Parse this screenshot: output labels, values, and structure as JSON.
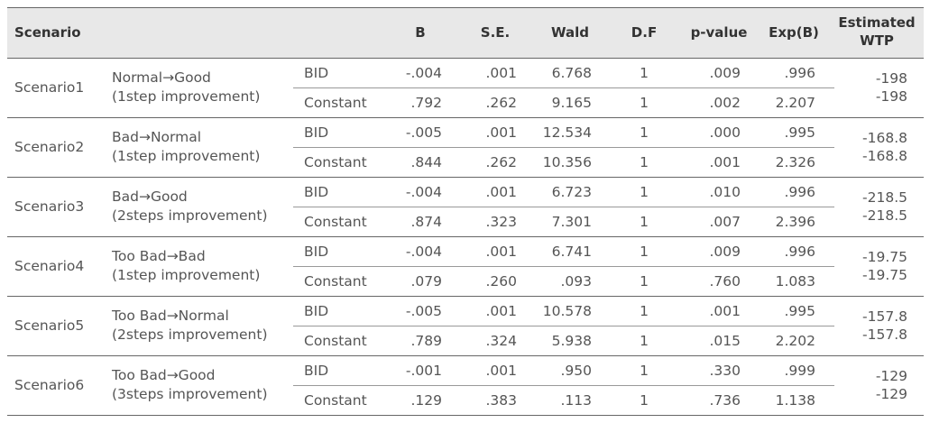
{
  "table": {
    "header": {
      "scenario": "Scenario",
      "columns": [
        "B",
        "S.E.",
        "Wald",
        "D.F",
        "p-value",
        "Exp(B)"
      ],
      "wtp": [
        "Estimated",
        "WTP"
      ]
    },
    "scenarios": [
      {
        "name": "Scenario1",
        "description": [
          "Normal→Good",
          "(1step improvement)"
        ],
        "rows": [
          {
            "label": "BID",
            "cells": [
              "-.004",
              ".001",
              "6.768",
              "1",
              ".009",
              ".996"
            ],
            "wtp": "-198"
          },
          {
            "label": "Constant",
            "cells": [
              ".792",
              ".262",
              "9.165",
              "1",
              ".002",
              "2.207"
            ],
            "wtp": "-198"
          }
        ]
      },
      {
        "name": "Scenario2",
        "description": [
          "Bad→Normal",
          "(1step improvement)"
        ],
        "rows": [
          {
            "label": "BID",
            "cells": [
              "-.005",
              ".001",
              "12.534",
              "1",
              ".000",
              ".995"
            ],
            "wtp": "-168.8"
          },
          {
            "label": "Constant",
            "cells": [
              ".844",
              ".262",
              "10.356",
              "1",
              ".001",
              "2.326"
            ],
            "wtp": "-168.8"
          }
        ]
      },
      {
        "name": "Scenario3",
        "description": [
          "Bad→Good",
          "(2steps improvement)"
        ],
        "rows": [
          {
            "label": "BID",
            "cells": [
              "-.004",
              ".001",
              "6.723",
              "1",
              ".010",
              ".996"
            ],
            "wtp": "-218.5"
          },
          {
            "label": "Constant",
            "cells": [
              ".874",
              ".323",
              "7.301",
              "1",
              ".007",
              "2.396"
            ],
            "wtp": "-218.5"
          }
        ]
      },
      {
        "name": "Scenario4",
        "description": [
          "Too Bad→Bad",
          "(1step improvement)"
        ],
        "rows": [
          {
            "label": "BID",
            "cells": [
              "-.004",
              ".001",
              "6.741",
              "1",
              ".009",
              ".996"
            ],
            "wtp": "-19.75"
          },
          {
            "label": "Constant",
            "cells": [
              ".079",
              ".260",
              ".093",
              "1",
              ".760",
              "1.083"
            ],
            "wtp": "-19.75"
          }
        ]
      },
      {
        "name": "Scenario5",
        "description": [
          "Too Bad→Normal",
          "(2steps improvement)"
        ],
        "rows": [
          {
            "label": "BID",
            "cells": [
              "-.005",
              ".001",
              "10.578",
              "1",
              ".001",
              ".995"
            ],
            "wtp": "-157.8"
          },
          {
            "label": "Constant",
            "cells": [
              ".789",
              ".324",
              "5.938",
              "1",
              ".015",
              "2.202"
            ],
            "wtp": "-157.8"
          }
        ]
      },
      {
        "name": "Scenario6",
        "description": [
          "Too Bad→Good",
          "(3steps improvement)"
        ],
        "rows": [
          {
            "label": "BID",
            "cells": [
              "-.001",
              ".001",
              ".950",
              "1",
              ".330",
              ".999"
            ],
            "wtp": "-129"
          },
          {
            "label": "Constant",
            "cells": [
              ".129",
              ".383",
              ".113",
              "1",
              ".736",
              "1.138"
            ],
            "wtp": "-129"
          }
        ]
      }
    ]
  }
}
